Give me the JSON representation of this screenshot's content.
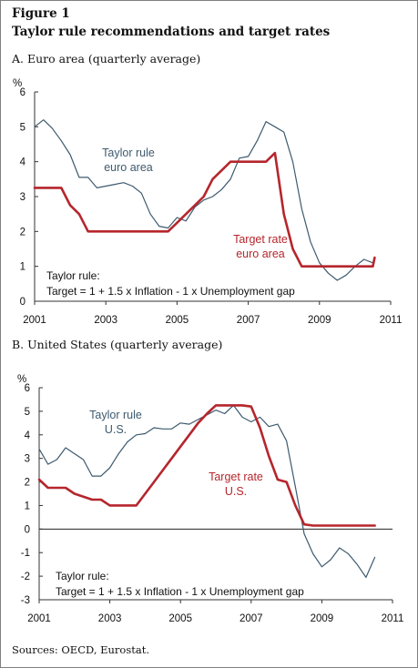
{
  "figure": {
    "label": "Figure 1",
    "title": "Taylor rule recommendations and target rates",
    "sources": "Sources: OECD, Eurostat."
  },
  "colors": {
    "taylor": "#3d5a6e",
    "target": "#b5262c",
    "axis": "#333333"
  },
  "chart_data": [
    {
      "type": "line",
      "title": "A. Euro area (quarterly average)",
      "ylabel": "%",
      "xlim": [
        2001,
        2011
      ],
      "ylim": [
        0,
        6
      ],
      "xticks": [
        "2001",
        "2003",
        "2005",
        "2007",
        "2009",
        "2011"
      ],
      "yticks": [
        "0",
        "1",
        "2",
        "3",
        "4",
        "5",
        "6"
      ],
      "grid": false,
      "annotations": {
        "taylor_label": [
          "Taylor rule",
          "euro area"
        ],
        "target_label": [
          "Target rate",
          "euro area"
        ],
        "formula": [
          "Taylor rule:",
          "Target = 1 + 1.5 x Inflation - 1 x Unemployment gap"
        ]
      },
      "series": [
        {
          "name": "Taylor rule euro area",
          "color": "#3d5a6e",
          "x": [
            2001.0,
            2001.25,
            2001.5,
            2001.75,
            2002.0,
            2002.25,
            2002.5,
            2002.75,
            2003.0,
            2003.25,
            2003.5,
            2003.75,
            2004.0,
            2004.25,
            2004.5,
            2004.75,
            2005.0,
            2005.25,
            2005.5,
            2005.75,
            2006.0,
            2006.25,
            2006.5,
            2006.75,
            2007.0,
            2007.25,
            2007.5,
            2007.75,
            2008.0,
            2008.25,
            2008.5,
            2008.75,
            2009.0,
            2009.25,
            2009.5,
            2009.75,
            2010.0,
            2010.25,
            2010.5
          ],
          "values": [
            5.0,
            5.2,
            4.95,
            4.6,
            4.2,
            3.55,
            3.55,
            3.25,
            3.3,
            3.35,
            3.4,
            3.3,
            3.1,
            2.5,
            2.15,
            2.1,
            2.4,
            2.3,
            2.7,
            2.9,
            3.0,
            3.2,
            3.5,
            4.1,
            4.15,
            4.6,
            5.15,
            5.0,
            4.85,
            4.0,
            2.65,
            1.7,
            1.1,
            0.8,
            0.6,
            0.75,
            1.0,
            1.2,
            1.1
          ]
        },
        {
          "name": "Target rate euro area",
          "color": "#b5262c",
          "x": [
            2001.0,
            2001.25,
            2001.5,
            2001.75,
            2002.0,
            2002.25,
            2002.5,
            2002.75,
            2003.0,
            2003.5,
            2004.0,
            2004.5,
            2004.75,
            2005.0,
            2005.25,
            2005.5,
            2005.75,
            2006.0,
            2006.25,
            2006.5,
            2006.75,
            2007.0,
            2007.25,
            2007.5,
            2007.75,
            2008.0,
            2008.25,
            2008.5,
            2008.75,
            2009.0,
            2009.5,
            2010.0,
            2010.25,
            2010.5,
            2010.55
          ],
          "values": [
            3.25,
            3.25,
            3.25,
            3.25,
            2.75,
            2.5,
            2.0,
            2.0,
            2.0,
            2.0,
            2.0,
            2.0,
            2.0,
            2.25,
            2.5,
            2.75,
            3.0,
            3.5,
            3.75,
            4.0,
            4.0,
            4.0,
            4.0,
            4.0,
            4.25,
            2.5,
            1.5,
            1.0,
            1.0,
            1.0,
            1.0,
            1.0,
            1.0,
            1.0,
            1.25
          ]
        }
      ]
    },
    {
      "type": "line",
      "title": "B. United States (quarterly average)",
      "ylabel": "%",
      "xlim": [
        2001,
        2011
      ],
      "ylim": [
        -3,
        6
      ],
      "xticks": [
        "2001",
        "2003",
        "2005",
        "2007",
        "2009",
        "2011"
      ],
      "yticks": [
        "-3",
        "-2",
        "-1",
        "0",
        "1",
        "2",
        "3",
        "4",
        "5",
        "6"
      ],
      "grid": false,
      "annotations": {
        "taylor_label": [
          "Taylor rule",
          "U.S."
        ],
        "target_label": [
          "Target rate",
          "U.S."
        ],
        "formula": [
          "Taylor rule:",
          "Target = 1 + 1.5 x Inflation - 1 x Unemployment gap"
        ]
      },
      "series": [
        {
          "name": "Taylor rule U.S.",
          "color": "#3d5a6e",
          "x": [
            2001.0,
            2001.25,
            2001.5,
            2001.75,
            2002.0,
            2002.25,
            2002.5,
            2002.75,
            2003.0,
            2003.25,
            2003.5,
            2003.75,
            2004.0,
            2004.25,
            2004.5,
            2004.75,
            2005.0,
            2005.25,
            2005.5,
            2005.75,
            2006.0,
            2006.25,
            2006.5,
            2006.75,
            2007.0,
            2007.25,
            2007.5,
            2007.75,
            2008.0,
            2008.25,
            2008.5,
            2008.75,
            2009.0,
            2009.25,
            2009.5,
            2009.75,
            2010.0,
            2010.25,
            2010.5
          ],
          "values": [
            3.4,
            2.75,
            2.95,
            3.45,
            3.2,
            2.95,
            2.25,
            2.25,
            2.6,
            3.2,
            3.7,
            4.0,
            4.05,
            4.3,
            4.25,
            4.25,
            4.5,
            4.45,
            4.65,
            4.85,
            5.05,
            4.9,
            5.25,
            4.75,
            4.55,
            4.75,
            4.35,
            4.45,
            3.75,
            1.8,
            -0.2,
            -1.05,
            -1.6,
            -1.3,
            -0.8,
            -1.05,
            -1.5,
            -2.05,
            -1.2
          ]
        },
        {
          "name": "Target rate U.S.",
          "color": "#b5262c",
          "x": [
            2001.0,
            2001.25,
            2001.5,
            2001.75,
            2002.0,
            2002.5,
            2002.75,
            2003.0,
            2003.25,
            2003.5,
            2003.75,
            2004.0,
            2004.25,
            2004.5,
            2004.75,
            2005.0,
            2005.25,
            2005.5,
            2005.75,
            2006.0,
            2006.25,
            2006.5,
            2006.75,
            2007.0,
            2007.25,
            2007.5,
            2007.75,
            2008.0,
            2008.25,
            2008.5,
            2008.75,
            2009.0,
            2009.5,
            2010.0,
            2010.5
          ],
          "values": [
            2.1,
            1.75,
            1.75,
            1.75,
            1.5,
            1.25,
            1.25,
            1.0,
            1.0,
            1.0,
            1.0,
            1.5,
            2.0,
            2.5,
            3.0,
            3.5,
            4.0,
            4.5,
            4.9,
            5.25,
            5.25,
            5.25,
            5.25,
            5.2,
            4.3,
            3.1,
            2.1,
            2.0,
            1.0,
            0.2,
            0.15,
            0.15,
            0.15,
            0.15,
            0.15
          ]
        }
      ]
    }
  ]
}
